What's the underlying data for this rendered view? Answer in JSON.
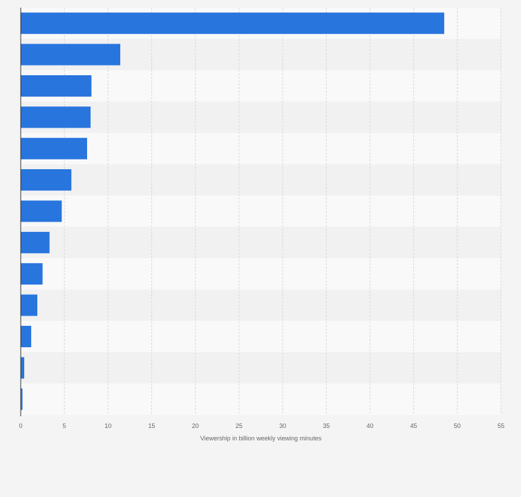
{
  "chart_data": {
    "type": "bar",
    "orientation": "horizontal",
    "title": "",
    "ylabel": "",
    "xlabel": "Viewership in billion weekly viewing minutes",
    "xlim": [
      0,
      55
    ],
    "x_ticks": [
      "0",
      "5",
      "10",
      "15",
      "20",
      "25",
      "30",
      "35",
      "40",
      "45",
      "50",
      "55"
    ],
    "grid": true,
    "legend": "none",
    "colors": {
      "bar": "#2875dd",
      "band_light": "#f9f9f9",
      "band_dark": "#f1f1f2",
      "grid": "#d8d8d8",
      "axis": "#333333",
      "background": "#f4f4f5"
    },
    "values": [
      48.5,
      11.4,
      8.1,
      8.0,
      7.6,
      5.8,
      4.7,
      3.3,
      2.5,
      1.9,
      1.2,
      0.4,
      0.2
    ]
  }
}
